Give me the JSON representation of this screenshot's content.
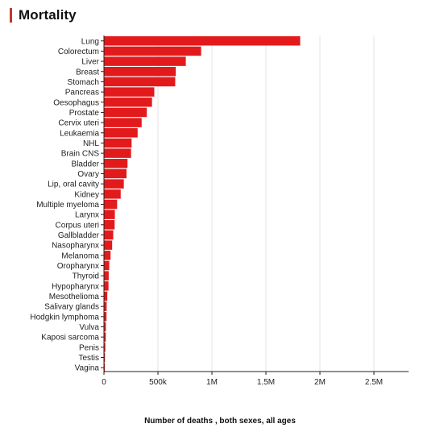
{
  "header": {
    "title": "Mortality"
  },
  "colors": {
    "bar": "#e31a1c",
    "accent": "#c0392b",
    "grid": "#e6e6e6",
    "axis": "#222222"
  },
  "chart_data": {
    "type": "bar",
    "orientation": "horizontal",
    "title": "Mortality",
    "xlabel": "Number of deaths , both sexes, all ages",
    "ylabel": "",
    "grid": true,
    "xlim": [
      0,
      2800000
    ],
    "xticks": [
      0,
      500000,
      1000000,
      1500000,
      2000000,
      2500000
    ],
    "xtick_labels": [
      "0",
      "500k",
      "1M",
      "1.5M",
      "2M",
      "2.5M"
    ],
    "categories": [
      "Lung",
      "Colorectum",
      "Liver",
      "Breast",
      "Stomach",
      "Pancreas",
      "Oesophagus",
      "Prostate",
      "Cervix uteri",
      "Leukaemia",
      "NHL",
      "Brain CNS",
      "Bladder",
      "Ovary",
      "Lip, oral cavity",
      "Kidney",
      "Multiple myeloma",
      "Larynx",
      "Corpus uteri",
      "Gallbladder",
      "Nasopharynx",
      "Melanoma",
      "Oropharynx",
      "Thyroid",
      "Hypopharynx",
      "Mesothelioma",
      "Salivary glands",
      "Hodgkin lymphoma",
      "Vulva",
      "Kaposi sarcoma",
      "Penis",
      "Testis",
      "Vagina"
    ],
    "values": [
      1817000,
      900000,
      758000,
      665000,
      660000,
      466000,
      445000,
      397000,
      349000,
      312000,
      256000,
      251000,
      218000,
      209000,
      184000,
      155000,
      122000,
      101000,
      99000,
      86000,
      76000,
      61000,
      49000,
      44000,
      42000,
      31000,
      25000,
      24000,
      18000,
      17000,
      13000,
      9500,
      8400
    ]
  }
}
